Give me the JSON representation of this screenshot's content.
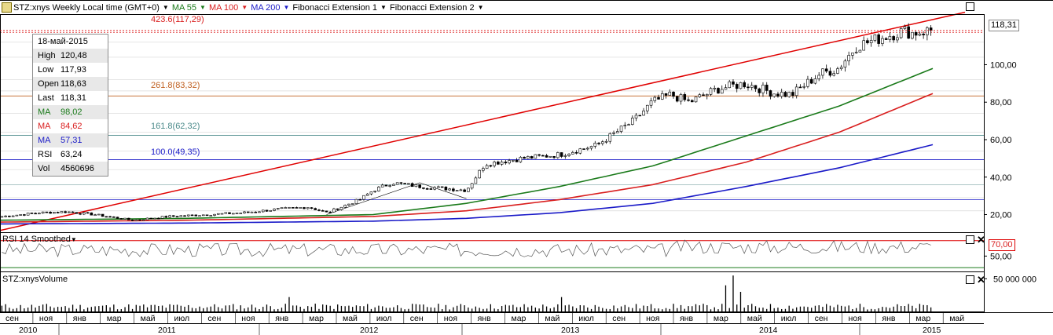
{
  "header": {
    "symbol_title": "STZ:xnys Weekly Local time (GMT+0)",
    "indicators": [
      {
        "label": "MA 55",
        "color": "#1a7a1a"
      },
      {
        "label": "MA 100",
        "color": "#d91e1e"
      },
      {
        "label": "MA 200",
        "color": "#1a1ac8"
      },
      {
        "label": "Fibonacci Extension 1",
        "color": "#000000"
      },
      {
        "label": "Fibonacci Extension 2",
        "color": "#000000"
      }
    ]
  },
  "info_box": {
    "date": "18-май-2015",
    "rows": [
      {
        "key": "High",
        "value": "120,48",
        "color": "#000000"
      },
      {
        "key": "Low",
        "value": "117,93",
        "color": "#000000"
      },
      {
        "key": "Open",
        "value": "118,63",
        "color": "#000000"
      },
      {
        "key": "Last",
        "value": "118,31",
        "color": "#000000"
      },
      {
        "key": "MA",
        "value": "98,02",
        "color": "#1a7a1a"
      },
      {
        "key": "MA",
        "value": "84,62",
        "color": "#d91e1e"
      },
      {
        "key": "MA",
        "value": "57,31",
        "color": "#1a1ac8"
      },
      {
        "key": "RSI",
        "value": "63,24",
        "color": "#000000"
      },
      {
        "key": "Vol",
        "value": "4560696",
        "color": "#000000"
      }
    ]
  },
  "last_price_label": "118,31",
  "rsi_panel": {
    "title": "RSI 14 Smoothed",
    "level_label": "70,00"
  },
  "volume_panel": {
    "title": "STZ:xnysVolume"
  },
  "chart_data": {
    "type": "candlestick",
    "price_axis": {
      "ticks": [
        20,
        40,
        60,
        80,
        100
      ],
      "tick_labels": [
        "20,00",
        "40,00",
        "60,00",
        "80,00",
        "100,00"
      ],
      "range": [
        11,
        127
      ]
    },
    "fib_levels": [
      {
        "label": "423.6(117,29)",
        "value": 117.29,
        "color": "#d91e1e"
      },
      {
        "label": "261.8(83,32)",
        "value": 83.32,
        "color": "#c06020"
      },
      {
        "label": "161.8(62,32)",
        "value": 62.32,
        "color": "#4a8a8a"
      },
      {
        "label": "100.0(49,35)",
        "value": 49.35,
        "color": "#1a1ac8"
      }
    ],
    "last_price": 118.31,
    "series": [
      {
        "name": "MA 55",
        "color": "#1a7a1a",
        "x": [
          0,
          0.2,
          0.4,
          0.5,
          0.6,
          0.7,
          0.8,
          0.9,
          1.0
        ],
        "y": [
          17,
          18,
          20,
          26,
          35,
          46,
          62,
          78,
          98
        ]
      },
      {
        "name": "MA 100",
        "color": "#d91e1e",
        "x": [
          0,
          0.2,
          0.4,
          0.5,
          0.6,
          0.7,
          0.8,
          0.9,
          1.0
        ],
        "y": [
          16,
          17,
          19,
          22,
          28,
          36,
          48,
          64,
          84.6
        ]
      },
      {
        "name": "MA 200",
        "color": "#1a1ac8",
        "x": [
          0,
          0.2,
          0.4,
          0.5,
          0.6,
          0.7,
          0.8,
          0.9,
          1.0
        ],
        "y": [
          15,
          15.5,
          16.5,
          18,
          21,
          26,
          35,
          45,
          57.3
        ]
      }
    ],
    "price_path": {
      "x": [
        0,
        0.04,
        0.07,
        0.1,
        0.14,
        0.18,
        0.22,
        0.26,
        0.3,
        0.33,
        0.35,
        0.385,
        0.4,
        0.42,
        0.45,
        0.5,
        0.52,
        0.56,
        0.6,
        0.64,
        0.68,
        0.7,
        0.72,
        0.74,
        0.77,
        0.8,
        0.83,
        0.85,
        0.88,
        0.9,
        0.92,
        0.95,
        0.97,
        0.98,
        1.0
      ],
      "y": [
        19,
        21,
        21.5,
        20,
        17,
        19,
        20,
        21,
        23,
        24,
        21,
        28,
        33,
        37,
        35,
        33,
        47,
        50,
        52,
        57,
        70,
        80,
        84,
        80,
        87,
        90,
        85,
        84,
        95,
        98,
        110,
        115,
        118,
        117,
        118.3
      ]
    },
    "rsi": {
      "level": 70,
      "tick_labels": [
        "50,00"
      ]
    },
    "volume": {
      "tick_label": "50 000 000",
      "max": 50000000
    },
    "x_axis": {
      "months": [
        "сен",
        "ноя",
        "янв",
        "мар",
        "май",
        "июл",
        "сен",
        "ноя",
        "янв",
        "мар",
        "май",
        "июл",
        "сен",
        "ноя",
        "янв",
        "мар",
        "май",
        "июл",
        "сен",
        "ноя",
        "янв",
        "мар",
        "май",
        "июл",
        "сен",
        "ноя",
        "янв",
        "мар",
        "май"
      ],
      "years": [
        "2010",
        "2011",
        "2012",
        "2013",
        "2014",
        "2015"
      ]
    }
  }
}
